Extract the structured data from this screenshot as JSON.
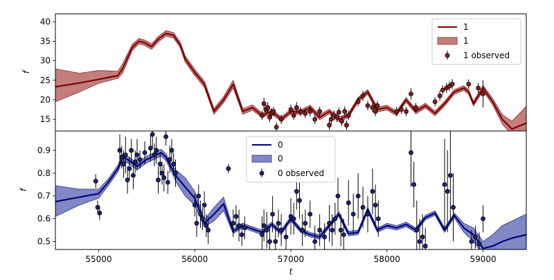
{
  "chart_data": [
    {
      "type": "line",
      "panel": "top",
      "xlabel": "",
      "ylabel": "f",
      "xlim": [
        54550,
        59450
      ],
      "ylim": [
        12,
        42
      ],
      "yticks": [
        15,
        20,
        25,
        30,
        35,
        40
      ],
      "colors": {
        "line": "#800000",
        "band": "#b55c5c",
        "points": "#8b1a1a"
      },
      "legend": {
        "placement": "top-right",
        "entries": [
          "1",
          "1",
          "1 observed"
        ]
      },
      "line": {
        "name": "1",
        "x": [
          54550,
          54800,
          55000,
          55200,
          55250,
          55350,
          55420,
          55480,
          55550,
          55620,
          55700,
          55780,
          55850,
          55900,
          56000,
          56100,
          56200,
          56300,
          56400,
          56500,
          56600,
          56700,
          56800,
          56900,
          57000,
          57100,
          57200,
          57300,
          57400,
          57500,
          57600,
          57700,
          57800,
          57900,
          58000,
          58100,
          58200,
          58300,
          58400,
          58500,
          58600,
          58700,
          58800,
          58850,
          58900,
          59000,
          59100,
          59200,
          59300,
          59450
        ],
        "y": [
          23.3,
          24.3,
          25.2,
          26.2,
          28,
          33.4,
          35,
          34.6,
          33.6,
          35.5,
          37,
          36.5,
          34,
          30.5,
          27,
          24,
          17,
          20,
          24,
          17,
          18,
          16,
          17,
          15,
          17,
          16.8,
          18,
          15.5,
          17,
          15,
          16,
          20,
          22,
          17.5,
          18,
          16.5,
          20,
          17,
          18.5,
          16.5,
          19,
          22,
          23,
          22,
          19,
          23,
          19.5,
          15,
          12.5,
          14
        ]
      },
      "band": {
        "name": "1",
        "lower": [
          19.5,
          22,
          24.2,
          25.5,
          26.8,
          32.6,
          34.3,
          33.9,
          32.9,
          34.8,
          36.3,
          35.8,
          33.3,
          29.7,
          26.2,
          23.2,
          16.3,
          19.2,
          23,
          16.3,
          17.3,
          15.4,
          16.4,
          14.4,
          16.4,
          16.2,
          17.4,
          14.9,
          16.4,
          14.4,
          15.4,
          19.4,
          21.4,
          16.9,
          17.4,
          15.9,
          19.4,
          16.4,
          17.9,
          15.9,
          18.4,
          21.4,
          22.4,
          21.4,
          18.4,
          22.3,
          18.7,
          13.8,
          11,
          11
        ],
        "upper": [
          27.9,
          26.8,
          27.5,
          27.3,
          29.2,
          34.2,
          35.7,
          35.3,
          34.3,
          36.2,
          37.7,
          37.2,
          34.7,
          31.3,
          27.8,
          24.8,
          17.7,
          20.8,
          25,
          17.7,
          18.7,
          16.6,
          17.6,
          15.6,
          17.6,
          17.4,
          18.6,
          16.1,
          17.6,
          15.6,
          16.6,
          20.6,
          22.6,
          18.1,
          18.6,
          17.1,
          20.6,
          17.6,
          19.1,
          17.1,
          19.6,
          22.6,
          23.6,
          22.6,
          19.6,
          23.7,
          20.3,
          16.2,
          14.5,
          18.3
        ]
      },
      "observed": {
        "name": "1 observed",
        "x": [
          56700,
          56720,
          56740,
          56760,
          56780,
          56800,
          56820,
          56850,
          56900,
          57000,
          57030,
          57060,
          57100,
          57150,
          57200,
          57250,
          57300,
          57400,
          57420,
          57450,
          57480,
          57500,
          57530,
          57560,
          57580,
          57600,
          57700,
          57750,
          57800,
          57850,
          57880,
          57900,
          58100,
          58150,
          58200,
          58250,
          58300,
          58500,
          58550,
          58580,
          58620,
          58650,
          58680,
          58850,
          58950,
          59000
        ],
        "y": [
          16,
          19,
          17.5,
          18,
          15.5,
          16.5,
          17,
          13,
          15,
          17.5,
          16,
          18,
          17,
          16.5,
          17,
          15,
          17,
          13.5,
          15,
          16,
          15.5,
          16.8,
          14.5,
          17,
          13.5,
          16,
          19.5,
          21,
          18.5,
          18,
          17,
          18.5,
          17,
          17.5,
          17,
          21.5,
          18,
          19.5,
          21,
          22.5,
          23,
          23.5,
          24,
          24,
          23,
          21.5
        ],
        "err": [
          1.2,
          1.5,
          1.2,
          1.4,
          1.2,
          1.3,
          1.2,
          1.2,
          1.2,
          1.3,
          1.2,
          1.4,
          1.2,
          1.2,
          1.3,
          1.2,
          1.2,
          1.2,
          1.2,
          1.3,
          1.2,
          1.2,
          1.2,
          1.3,
          1.2,
          1.2,
          1.2,
          1.3,
          1.2,
          1.2,
          1.2,
          1.2,
          1.2,
          1.2,
          1.2,
          1.5,
          1.2,
          1.2,
          1.3,
          1.2,
          1.3,
          1.2,
          1.3,
          1.2,
          1.3,
          3.5
        ]
      }
    },
    {
      "type": "line",
      "panel": "bottom",
      "xlabel": "t",
      "ylabel": "f",
      "xlim": [
        54550,
        59450
      ],
      "ylim": [
        0.465,
        0.985
      ],
      "xticks": [
        55000,
        56000,
        57000,
        58000,
        59000
      ],
      "yticks": [
        0.5,
        0.6,
        0.7,
        0.8,
        0.9
      ],
      "colors": {
        "line": "#000080",
        "band": "#4a56ad",
        "points": "#1a237e"
      },
      "legend": {
        "placement": "top-center",
        "entries": [
          "0",
          "0",
          "0 observed"
        ]
      },
      "line": {
        "name": "0",
        "x": [
          54550,
          54800,
          55000,
          55100,
          55200,
          55250,
          55300,
          55400,
          55500,
          55600,
          55650,
          55700,
          55750,
          55800,
          55900,
          56000,
          56100,
          56200,
          56300,
          56400,
          56500,
          56600,
          56700,
          56800,
          56900,
          57000,
          57100,
          57200,
          57300,
          57400,
          57500,
          57600,
          57700,
          57800,
          57900,
          58000,
          58100,
          58200,
          58300,
          58400,
          58500,
          58600,
          58700,
          58800,
          58900,
          59000,
          59100,
          59200,
          59300,
          59450
        ],
        "y": [
          0.675,
          0.695,
          0.71,
          0.76,
          0.82,
          0.87,
          0.86,
          0.83,
          0.86,
          0.88,
          0.89,
          0.87,
          0.83,
          0.79,
          0.74,
          0.69,
          0.58,
          0.62,
          0.665,
          0.545,
          0.57,
          0.555,
          0.54,
          0.575,
          0.54,
          0.6,
          0.55,
          0.53,
          0.52,
          0.57,
          0.62,
          0.535,
          0.54,
          0.64,
          0.55,
          0.57,
          0.56,
          0.575,
          0.55,
          0.605,
          0.625,
          0.55,
          0.615,
          0.56,
          0.53,
          0.47,
          0.48,
          0.5,
          0.515,
          0.53
        ]
      },
      "band": {
        "name": "0",
        "lower": [
          0.61,
          0.66,
          0.69,
          0.745,
          0.805,
          0.855,
          0.845,
          0.815,
          0.845,
          0.865,
          0.875,
          0.855,
          0.815,
          0.765,
          0.7,
          0.66,
          0.565,
          0.59,
          0.635,
          0.535,
          0.56,
          0.545,
          0.53,
          0.565,
          0.53,
          0.59,
          0.54,
          0.52,
          0.51,
          0.56,
          0.61,
          0.525,
          0.53,
          0.63,
          0.54,
          0.56,
          0.55,
          0.565,
          0.54,
          0.595,
          0.615,
          0.54,
          0.605,
          0.54,
          0.5,
          0.44,
          0.43,
          0.43,
          0.44,
          0.44
        ],
        "upper": [
          0.745,
          0.73,
          0.73,
          0.775,
          0.835,
          0.885,
          0.875,
          0.845,
          0.875,
          0.895,
          0.905,
          0.885,
          0.845,
          0.815,
          0.78,
          0.72,
          0.595,
          0.65,
          0.695,
          0.555,
          0.58,
          0.565,
          0.55,
          0.585,
          0.55,
          0.61,
          0.56,
          0.54,
          0.53,
          0.58,
          0.63,
          0.545,
          0.55,
          0.65,
          0.56,
          0.58,
          0.57,
          0.585,
          0.56,
          0.615,
          0.635,
          0.56,
          0.625,
          0.58,
          0.56,
          0.5,
          0.53,
          0.57,
          0.59,
          0.62
        ]
      },
      "observed": {
        "name": "0 observed",
        "x": [
          54970,
          54990,
          55010,
          55220,
          55240,
          55260,
          55280,
          55300,
          55320,
          55340,
          55360,
          55380,
          55400,
          55430,
          55480,
          55540,
          55560,
          55580,
          55600,
          55620,
          55640,
          55660,
          55680,
          55700,
          55720,
          55740,
          55760,
          55780,
          55800,
          56000,
          56020,
          56040,
          56060,
          56080,
          56100,
          56120,
          56140,
          56350,
          56400,
          56430,
          56460,
          56490,
          56520,
          56700,
          56720,
          56750,
          56780,
          56810,
          56840,
          56870,
          56900,
          56950,
          57000,
          57030,
          57060,
          57090,
          57120,
          57150,
          57200,
          57250,
          57300,
          57350,
          57400,
          57430,
          57460,
          57490,
          57520,
          57550,
          57600,
          57650,
          57700,
          57750,
          57800,
          57850,
          57880,
          57910,
          58250,
          58280,
          58310,
          58340,
          58370,
          58400,
          58600,
          58630,
          58660,
          58690,
          58880,
          58920,
          58960,
          59000
        ],
        "y": [
          0.765,
          0.65,
          0.625,
          0.9,
          0.87,
          0.84,
          0.88,
          0.77,
          0.82,
          0.9,
          0.79,
          0.85,
          0.88,
          0.86,
          0.89,
          0.91,
          0.97,
          0.88,
          0.9,
          0.77,
          0.84,
          0.8,
          0.78,
          0.96,
          0.76,
          0.86,
          0.9,
          0.84,
          0.8,
          0.66,
          0.58,
          0.7,
          0.62,
          0.6,
          0.66,
          0.57,
          0.55,
          0.82,
          0.58,
          0.61,
          0.57,
          0.53,
          0.56,
          0.53,
          0.57,
          0.55,
          0.5,
          0.62,
          0.5,
          0.58,
          0.55,
          0.52,
          0.61,
          0.6,
          0.72,
          0.68,
          0.55,
          0.58,
          0.62,
          0.5,
          0.55,
          0.52,
          0.58,
          0.55,
          0.6,
          0.7,
          0.55,
          0.53,
          0.67,
          0.62,
          0.7,
          0.65,
          0.62,
          0.72,
          0.66,
          0.6,
          0.89,
          0.75,
          0.55,
          0.5,
          0.52,
          0.48,
          0.75,
          0.72,
          0.79,
          0.65,
          0.5,
          0.52,
          0.49,
          0.6
        ],
        "err": [
          0.03,
          0.03,
          0.03,
          0.07,
          0.05,
          0.06,
          0.08,
          0.06,
          0.05,
          0.05,
          0.06,
          0.05,
          0.07,
          0.04,
          0.05,
          0.06,
          0.06,
          0.05,
          0.06,
          0.06,
          0.05,
          0.05,
          0.06,
          0.04,
          0.05,
          0.06,
          0.05,
          0.05,
          0.06,
          0.05,
          0.06,
          0.05,
          0.06,
          0.05,
          0.06,
          0.05,
          0.06,
          0.02,
          0.06,
          0.05,
          0.07,
          0.05,
          0.05,
          0.08,
          0.07,
          0.08,
          0.07,
          0.08,
          0.07,
          0.06,
          0.07,
          0.06,
          0.08,
          0.07,
          0.08,
          0.08,
          0.07,
          0.06,
          0.06,
          0.07,
          0.07,
          0.06,
          0.08,
          0.07,
          0.07,
          0.08,
          0.07,
          0.07,
          0.1,
          0.09,
          0.1,
          0.09,
          0.08,
          0.1,
          0.09,
          0.08,
          0.15,
          0.1,
          0.13,
          0.1,
          0.1,
          0.08,
          0.2,
          0.18,
          0.2,
          0.15,
          0.05,
          0.05,
          0.05,
          0.06
        ]
      }
    }
  ],
  "axes": {
    "top": {
      "ylabel": "f"
    },
    "bottom": {
      "ylabel": "f",
      "xlabel": "t"
    }
  }
}
